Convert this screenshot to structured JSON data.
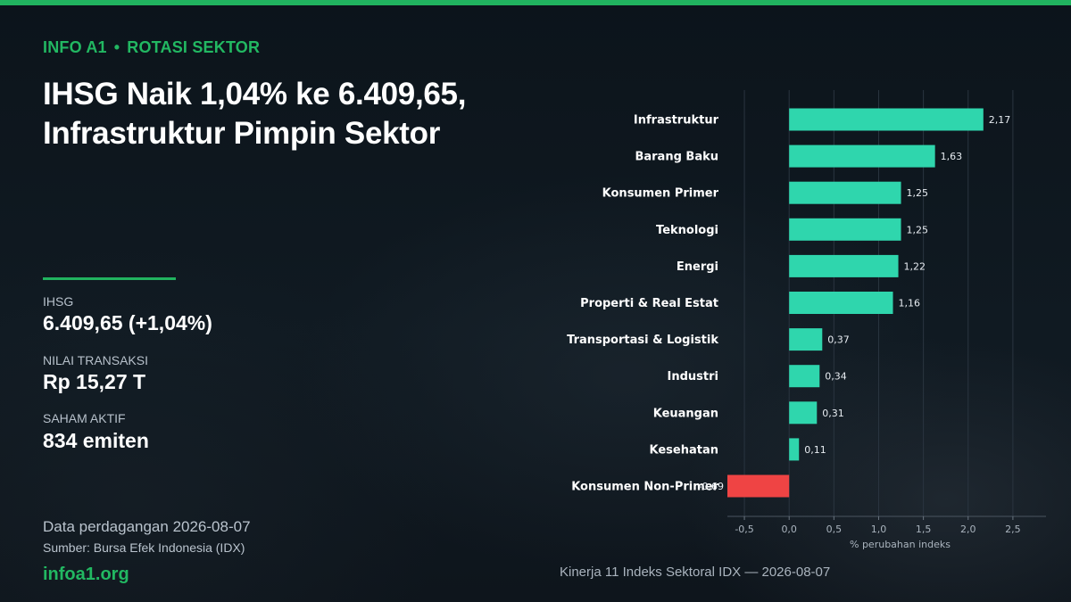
{
  "header": {
    "brand": "INFO A1",
    "separator": "•",
    "section": "ROTASI SEKTOR",
    "headline_line1": "IHSG Naik 1,04% ke 6.409,65,",
    "headline_line2": "Infrastruktur Pimpin Sektor"
  },
  "stats": [
    {
      "label": "IHSG",
      "value": "6.409,65  (+1,04%)"
    },
    {
      "label": "NILAI TRANSAKSI",
      "value": "Rp 15,27 T"
    },
    {
      "label": "SAHAM AKTIF",
      "value": "834 emiten"
    }
  ],
  "footer": {
    "date": "Data perdagangan 2026-08-07",
    "source": "Sumber: Bursa Efek Indonesia (IDX)",
    "site": "infoa1.org",
    "chart_caption": "Kinerja 11 Indeks Sektoral IDX — 2026-08-07"
  },
  "colors": {
    "accent": "#21b35f",
    "positive_bar": "#2fd6ad",
    "negative_bar": "#ef4444"
  },
  "chart_data": {
    "type": "bar",
    "orientation": "horizontal",
    "categories": [
      "Infrastruktur",
      "Barang Baku",
      "Konsumen Primer",
      "Teknologi",
      "Energi",
      "Properti & Real Estat",
      "Transportasi & Logistik",
      "Industri",
      "Keuangan",
      "Kesehatan",
      "Konsumen Non-Primer"
    ],
    "values": [
      2.17,
      1.63,
      1.25,
      1.25,
      1.22,
      1.16,
      0.37,
      0.34,
      0.31,
      0.11,
      -0.69
    ],
    "value_labels": [
      "2,17",
      "1,63",
      "1,25",
      "1,25",
      "1,22",
      "1,16",
      "0,37",
      "0,34",
      "0,31",
      "0,11",
      "-0,69"
    ],
    "xlabel": "% perubahan indeks",
    "ylabel": "",
    "xlim": [
      -0.69,
      2.87
    ],
    "xticks": [
      -0.5,
      0.0,
      0.5,
      1.0,
      1.5,
      2.0,
      2.5
    ],
    "xtick_labels": [
      "-0,5",
      "0,0",
      "0,5",
      "1,0",
      "1,5",
      "2,0",
      "2,5"
    ],
    "grid": true
  }
}
